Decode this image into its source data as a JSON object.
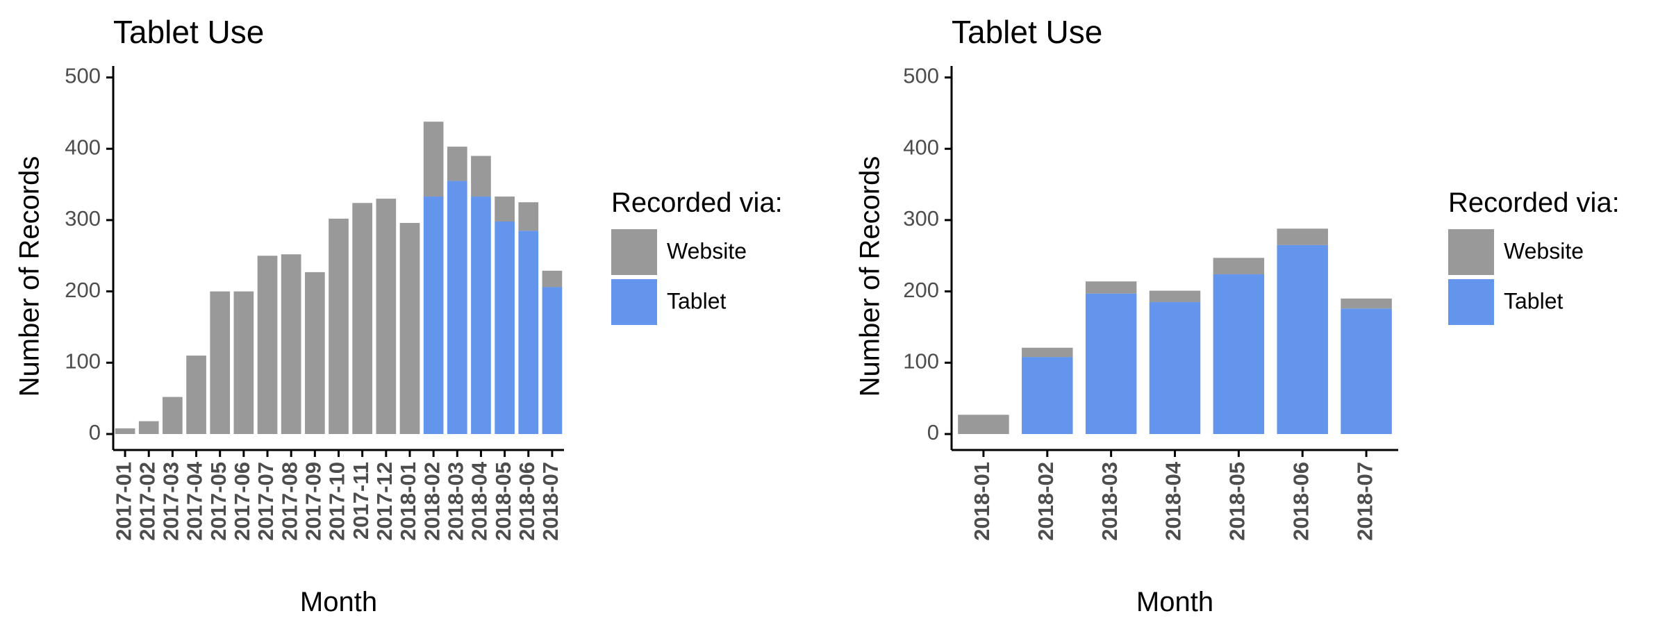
{
  "colors": {
    "website": "#999999",
    "tablet": "#6495ed",
    "axis": "#000000",
    "tick_text": "#4d4d4d"
  },
  "chart_data": [
    {
      "type": "bar",
      "stacked": true,
      "title": "Tablet Use",
      "xlabel": "Month",
      "ylabel": "Number of Records",
      "ylim": [
        0,
        520
      ],
      "yticks": [
        0,
        100,
        200,
        300,
        400,
        500
      ],
      "legend": {
        "title": "Recorded via:",
        "placement": "right"
      },
      "categories": [
        "2017-01",
        "2017-02",
        "2017-03",
        "2017-04",
        "2017-05",
        "2017-06",
        "2017-07",
        "2017-08",
        "2017-09",
        "2017-10",
        "2017-11",
        "2017-12",
        "2018-01",
        "2018-02",
        "2018-03",
        "2018-04",
        "2018-05",
        "2018-06",
        "2018-07"
      ],
      "series": [
        {
          "name": "Website",
          "color": "#999999",
          "values": [
            8,
            18,
            52,
            110,
            200,
            200,
            250,
            252,
            227,
            302,
            324,
            330,
            296,
            105,
            48,
            57,
            35,
            40,
            23
          ]
        },
        {
          "name": "Tablet",
          "color": "#6495ed",
          "values": [
            0,
            0,
            0,
            0,
            0,
            0,
            0,
            0,
            0,
            0,
            0,
            0,
            0,
            333,
            355,
            333,
            298,
            285,
            206
          ]
        }
      ]
    },
    {
      "type": "bar",
      "stacked": true,
      "title": "Tablet Use",
      "xlabel": "Month",
      "ylabel": "Number of Records",
      "ylim": [
        0,
        520
      ],
      "yticks": [
        0,
        100,
        200,
        300,
        400,
        500
      ],
      "legend": {
        "title": "Recorded via:",
        "placement": "right"
      },
      "categories": [
        "2018-01",
        "2018-02",
        "2018-03",
        "2018-04",
        "2018-05",
        "2018-06",
        "2018-07"
      ],
      "series": [
        {
          "name": "Website",
          "color": "#999999",
          "values": [
            27,
            13,
            17,
            16,
            23,
            23,
            14
          ]
        },
        {
          "name": "Tablet",
          "color": "#6495ed",
          "values": [
            0,
            108,
            197,
            185,
            224,
            265,
            176
          ]
        }
      ]
    }
  ]
}
